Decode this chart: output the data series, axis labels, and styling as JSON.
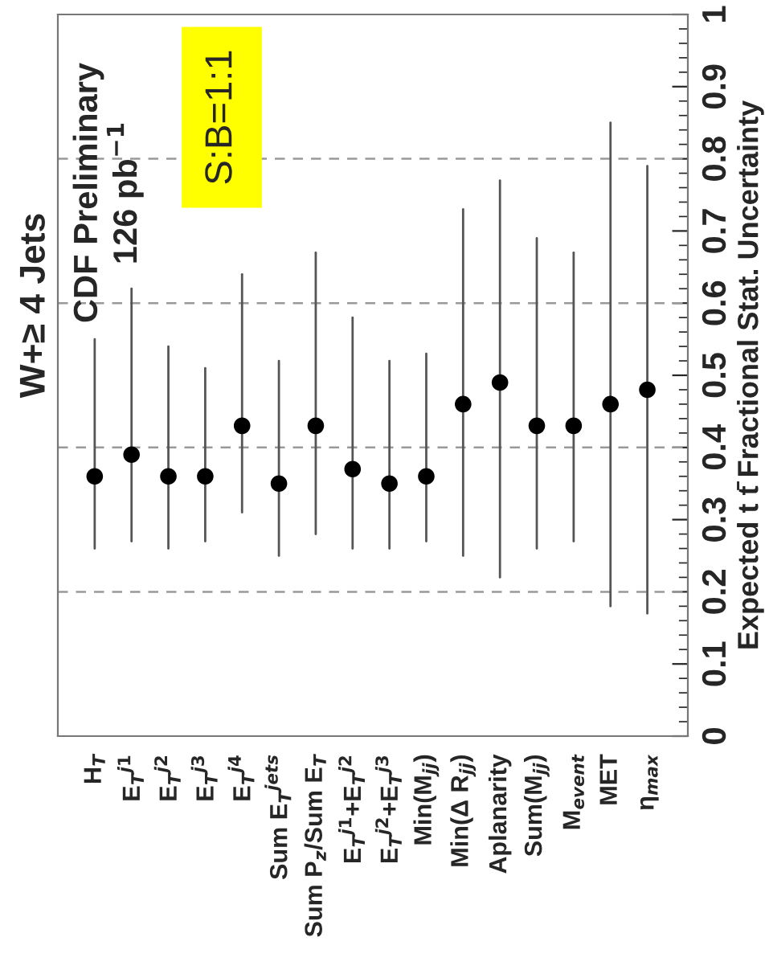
{
  "chart_data": {
    "type": "scatter",
    "title": "W+≥ 4 Jets",
    "ylabel": "Expected t t̄ Fractional Stat. Uncertainty",
    "categories": [
      "H$_{T}$",
      "E$_{T}$$^{j1}$",
      "E$_{T}$$^{j2}$",
      "E$_{T}$$^{j3}$",
      "E$_{T}$$^{j4}$",
      "Sum E$_{T}$$^{jets}$",
      "Sum P$_{z}$/Sum E$_{T}$",
      "E$_{T}$$^{j1}$+E$_{T}$$^{j2}$",
      "E$_{T}$$^{j2}$+E$_{T}$$^{j3}$",
      "Min(M$_{jj}$)",
      "Min(Δ R$_{jj}$)",
      "Aplanarity",
      "Sum(M$_{jj}$)",
      "M$_{event}$",
      "MET",
      "η$_{max}$"
    ],
    "series": [
      {
        "color": "#000000",
        "values": [
          0.36,
          0.39,
          0.36,
          0.36,
          0.43,
          0.35,
          0.43,
          0.37,
          0.35,
          0.36,
          0.46,
          0.49,
          0.43,
          0.43,
          0.46,
          0.48
        ],
        "errors": [
          [
            0.26,
            0.55
          ],
          [
            0.27,
            0.62
          ],
          [
            0.26,
            0.54
          ],
          [
            0.27,
            0.51
          ],
          [
            0.31,
            0.64
          ],
          [
            0.25,
            0.52
          ],
          [
            0.28,
            0.67
          ],
          [
            0.26,
            0.58
          ],
          [
            0.26,
            0.52
          ],
          [
            0.27,
            0.53
          ],
          [
            0.25,
            0.73
          ],
          [
            0.22,
            0.77
          ],
          [
            0.26,
            0.69
          ],
          [
            0.27,
            0.67
          ],
          [
            0.18,
            0.85
          ],
          [
            0.17,
            0.79
          ]
        ]
      }
    ],
    "ylim": [
      0,
      1
    ],
    "yticks": [
      0,
      0.1,
      0.2,
      0.3,
      0.4,
      0.5,
      0.6,
      0.7,
      0.8,
      0.9,
      1
    ],
    "marker": "circle",
    "legend": false,
    "grid": false,
    "ref_lines": [
      {
        "axis": "y",
        "value": 0.2,
        "color": "#999999",
        "line_style": "dashed"
      },
      {
        "axis": "y",
        "value": 0.4,
        "color": "#999999",
        "line_style": "dashed"
      },
      {
        "axis": "y",
        "value": 0.6,
        "color": "#999999",
        "line_style": "dashed"
      },
      {
        "axis": "y",
        "value": 0.8,
        "color": "#999999",
        "line_style": "dashed"
      }
    ],
    "annotations": [
      "CDF Preliminary",
      "126 pb$^{−1}$",
      "S:B=1:1"
    ]
  }
}
